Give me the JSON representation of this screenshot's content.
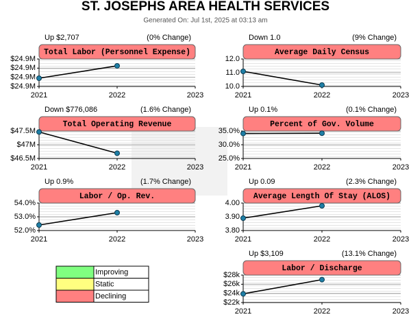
{
  "title": "ST. JOSEPHS AREA HEALTH SERVICES",
  "subtitle": "Generated On: Jul 1st, 2025 at 03:13 am",
  "chart_data": [
    {
      "type": "line",
      "title": "Total Labor (Personnel Expense)",
      "change": "Up $2,707",
      "change_pct": "(0% Change)",
      "x": [
        2021,
        2022
      ],
      "values": [
        24896800,
        24899507
      ],
      "color": "#000000",
      "marker_color": "#1f7fa6",
      "xlim": [
        2021,
        2023
      ],
      "xticks": [
        2021,
        2022,
        2023
      ],
      "ylim": [
        24895000,
        24901000
      ],
      "yticks": [
        {
          "value": 24895000,
          "label": "$24.9M"
        },
        {
          "value": 24897000,
          "label": "$24.9M"
        },
        {
          "value": 24899000,
          "label": "$24.9M"
        },
        {
          "value": 24901000,
          "label": "$24.9M"
        }
      ],
      "grid": true
    },
    {
      "type": "line",
      "title": "Average Daily Census",
      "change": "Down 1.0",
      "change_pct": "(9% Change)",
      "x": [
        2021,
        2022
      ],
      "values": [
        11.1,
        10.1
      ],
      "color": "#000000",
      "marker_color": "#1f7fa6",
      "xlim": [
        2021,
        2023
      ],
      "xticks": [
        2021,
        2022,
        2023
      ],
      "ylim": [
        10,
        12
      ],
      "yticks": [
        {
          "value": 10,
          "label": "10.0"
        },
        {
          "value": 11,
          "label": "11.0"
        },
        {
          "value": 12,
          "label": "12.0"
        }
      ],
      "grid": true
    },
    {
      "type": "line",
      "title": "Total Operating Revenue",
      "change": "Down $776,086",
      "change_pct": "(1.6% Change)",
      "x": [
        2021,
        2022
      ],
      "values": [
        47466086,
        46690000
      ],
      "color": "#000000",
      "marker_color": "#1f7fa6",
      "xlim": [
        2021,
        2023
      ],
      "xticks": [
        2021,
        2022,
        2023
      ],
      "ylim": [
        46500000,
        47500000
      ],
      "yticks": [
        {
          "value": 46500000,
          "label": "$46.5M"
        },
        {
          "value": 47000000,
          "label": "$47M"
        },
        {
          "value": 47500000,
          "label": "$47.5M"
        }
      ],
      "grid": true
    },
    {
      "type": "line",
      "title": "Percent of Gov. Volume",
      "change": "Up 0.1%",
      "change_pct": "(0.1% Change)",
      "x": [
        2021,
        2022
      ],
      "values": [
        34.1,
        34.2
      ],
      "color": "#000000",
      "marker_color": "#1f7fa6",
      "xlim": [
        2021,
        2023
      ],
      "xticks": [
        2021,
        2022,
        2023
      ],
      "ylim": [
        25,
        35
      ],
      "yticks": [
        {
          "value": 25,
          "label": "25.0%"
        },
        {
          "value": 30,
          "label": "30.0%"
        },
        {
          "value": 35,
          "label": "35.0%"
        }
      ],
      "grid": true
    },
    {
      "type": "line",
      "title": "Labor / Op. Rev.",
      "change": "Up 0.9%",
      "change_pct": "(1.7% Change)",
      "x": [
        2021,
        2022
      ],
      "values": [
        52.4,
        53.3
      ],
      "color": "#000000",
      "marker_color": "#1f7fa6",
      "xlim": [
        2021,
        2023
      ],
      "xticks": [
        2021,
        2022,
        2023
      ],
      "ylim": [
        52,
        54
      ],
      "yticks": [
        {
          "value": 52,
          "label": "52.0%"
        },
        {
          "value": 53,
          "label": "53.0%"
        },
        {
          "value": 54,
          "label": "54.0%"
        }
      ],
      "grid": true
    },
    {
      "type": "line",
      "title": "Average Length Of Stay (ALOS)",
      "change": "Up 0.09",
      "change_pct": "(2.3% Change)",
      "x": [
        2021,
        2022
      ],
      "values": [
        3.89,
        3.98
      ],
      "color": "#000000",
      "marker_color": "#1f7fa6",
      "xlim": [
        2021,
        2023
      ],
      "xticks": [
        2021,
        2022,
        2023
      ],
      "ylim": [
        3.8,
        4.0
      ],
      "yticks": [
        {
          "value": 3.8,
          "label": "3.80"
        },
        {
          "value": 3.9,
          "label": "3.90"
        },
        {
          "value": 4.0,
          "label": "4.00"
        }
      ],
      "grid": true
    },
    {
      "type": "line",
      "title": "Labor / Discharge",
      "change": "Up $3,109",
      "change_pct": "(13.1% Change)",
      "x": [
        2021,
        2022
      ],
      "values": [
        23900,
        27009
      ],
      "color": "#000000",
      "marker_color": "#1f7fa6",
      "xlim": [
        2021,
        2023
      ],
      "xticks": [
        2021,
        2022,
        2023
      ],
      "ylim": [
        22000,
        28000
      ],
      "yticks": [
        {
          "value": 22000,
          "label": "$22k"
        },
        {
          "value": 24000,
          "label": "$24k"
        },
        {
          "value": 26000,
          "label": "$26k"
        },
        {
          "value": 28000,
          "label": "$28k"
        }
      ],
      "grid": true
    }
  ],
  "legend": [
    {
      "label": "Improving",
      "color": "#80ff80"
    },
    {
      "label": "Static",
      "color": "#ffff80"
    },
    {
      "label": "Declining",
      "color": "#ff8080"
    }
  ]
}
